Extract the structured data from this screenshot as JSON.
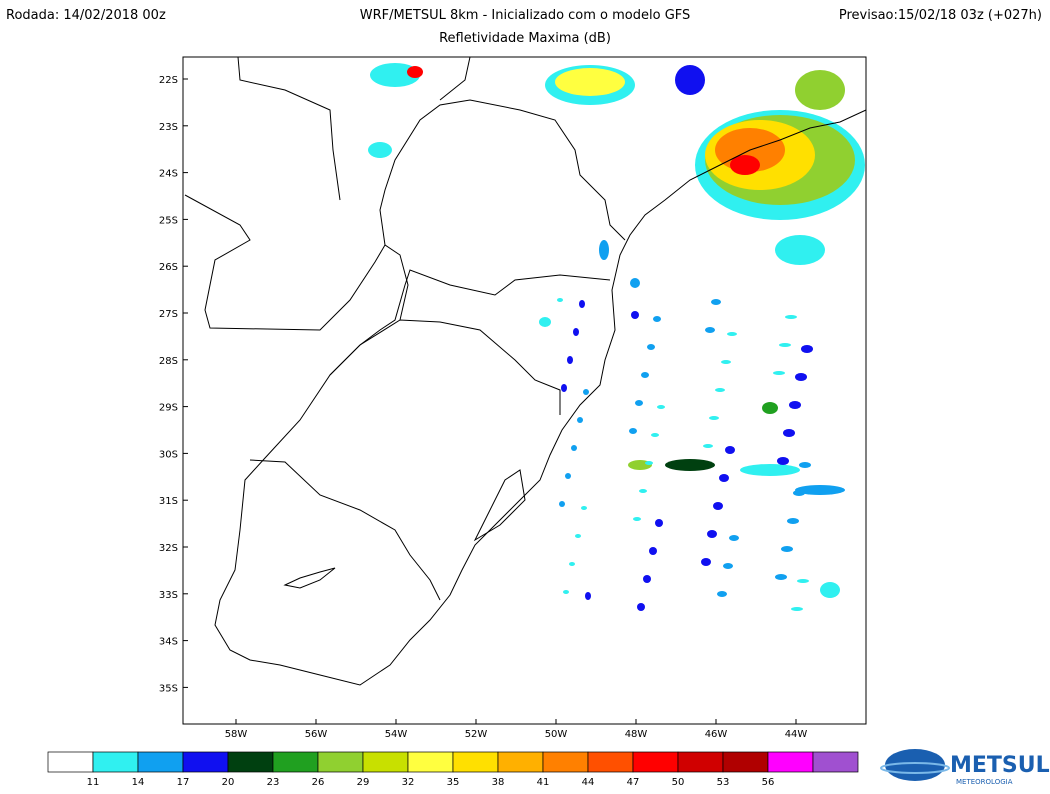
{
  "header": {
    "run": "Rodada: 14/02/2018 00z",
    "title": "WRF/METSUL 8km - Inicializado com o modelo GFS",
    "forecast": "Previsao:15/02/18 03z (+027h)",
    "subtitle": "Refletividade Maxima (dB)"
  },
  "map": {
    "lat_labels": [
      "22S",
      "23S",
      "24S",
      "25S",
      "26S",
      "27S",
      "28S",
      "29S",
      "30S",
      "31S",
      "32S",
      "33S",
      "34S",
      "35S"
    ],
    "lon_labels": [
      "58W",
      "56W",
      "54W",
      "52W",
      "50W",
      "48W",
      "46W",
      "44W"
    ]
  },
  "colorbar": {
    "colors": [
      "#ffffff",
      "#30f0f0",
      "#10a0f0",
      "#1010f0",
      "#004010",
      "#20a020",
      "#90d030",
      "#c8e000",
      "#ffff40",
      "#ffe000",
      "#ffb000",
      "#ff8000",
      "#ff5000",
      "#ff0000",
      "#d00000",
      "#b00000",
      "#ff00ff",
      "#a050d0"
    ],
    "labels": [
      "11",
      "14",
      "17",
      "20",
      "23",
      "26",
      "29",
      "32",
      "35",
      "38",
      "41",
      "44",
      "47",
      "50",
      "53",
      "56"
    ]
  },
  "logo": {
    "name": "METSUL",
    "tagline": "METEOROLOGIA"
  }
}
